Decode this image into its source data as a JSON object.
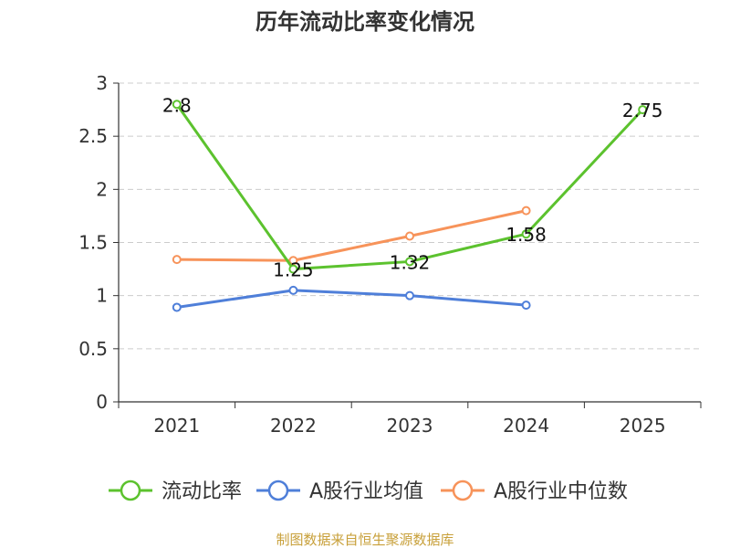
{
  "chart_data": {
    "type": "line",
    "title": "历年流动比率变化情况",
    "categories": [
      "2021",
      "2022",
      "2023",
      "2024",
      "2025"
    ],
    "ylim": [
      0,
      3
    ],
    "yticks": [
      "0",
      "0.5",
      "1",
      "1.5",
      "2",
      "2.5",
      "3"
    ],
    "ytick_values": [
      0,
      0.5,
      1,
      1.5,
      2,
      2.5,
      3
    ],
    "grid": true,
    "legend_position": "bottom",
    "series": [
      {
        "key": "liudong",
        "name": "流动比率",
        "color": "#5cc22e",
        "values": [
          2.8,
          1.25,
          1.32,
          1.58,
          2.75
        ],
        "labels": [
          "2.8",
          "1.25",
          "1.32",
          "1.58",
          "2.75"
        ]
      },
      {
        "key": "industry-avg",
        "name": "A股行业均值",
        "color": "#4f7fd9",
        "values": [
          0.89,
          1.05,
          1.0,
          0.91,
          null
        ]
      },
      {
        "key": "industry-median",
        "name": "A股行业中位数",
        "color": "#f7935a",
        "values": [
          1.34,
          1.33,
          1.56,
          1.8,
          null
        ]
      }
    ],
    "source": "制图数据来自恒生聚源数据库",
    "source_color": "#c8a03a"
  }
}
